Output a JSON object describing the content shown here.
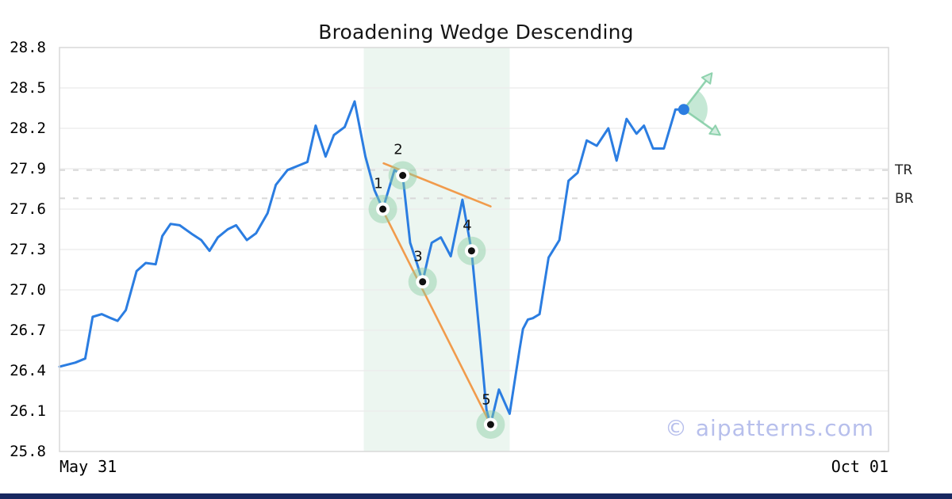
{
  "chart_data": {
    "type": "line",
    "title": "Broadening Wedge Descending",
    "xlabel": "",
    "ylabel": "",
    "x_ticks": [
      "May 31",
      "Oct 01"
    ],
    "y_ticks": [
      "28.8",
      "28.5",
      "28.2",
      "27.9",
      "27.6",
      "27.3",
      "27.0",
      "26.7",
      "26.4",
      "26.1",
      "25.8"
    ],
    "ylim": [
      25.8,
      28.8
    ],
    "grid": "horizontal",
    "legend": "none",
    "watermark": "© aipatterns.com",
    "series": [
      {
        "name": "price",
        "points": [
          [
            0.0,
            26.43
          ],
          [
            0.019,
            26.46
          ],
          [
            0.031,
            26.49
          ],
          [
            0.04,
            26.8
          ],
          [
            0.051,
            26.82
          ],
          [
            0.062,
            26.79
          ],
          [
            0.07,
            26.77
          ],
          [
            0.08,
            26.85
          ],
          [
            0.093,
            27.14
          ],
          [
            0.104,
            27.2
          ],
          [
            0.116,
            27.19
          ],
          [
            0.124,
            27.4
          ],
          [
            0.134,
            27.49
          ],
          [
            0.145,
            27.48
          ],
          [
            0.161,
            27.41
          ],
          [
            0.171,
            27.37
          ],
          [
            0.181,
            27.29
          ],
          [
            0.191,
            27.39
          ],
          [
            0.203,
            27.45
          ],
          [
            0.213,
            27.48
          ],
          [
            0.226,
            27.37
          ],
          [
            0.237,
            27.42
          ],
          [
            0.251,
            27.57
          ],
          [
            0.261,
            27.78
          ],
          [
            0.275,
            27.89
          ],
          [
            0.287,
            27.92
          ],
          [
            0.299,
            27.95
          ],
          [
            0.309,
            28.22
          ],
          [
            0.321,
            27.99
          ],
          [
            0.331,
            28.15
          ],
          [
            0.344,
            28.21
          ],
          [
            0.356,
            28.4
          ],
          [
            0.369,
            27.99
          ],
          [
            0.38,
            27.74
          ],
          [
            0.39,
            27.6
          ],
          [
            0.404,
            27.89
          ],
          [
            0.414,
            27.85
          ],
          [
            0.423,
            27.35
          ],
          [
            0.431,
            27.2
          ],
          [
            0.438,
            27.06
          ],
          [
            0.445,
            27.25
          ],
          [
            0.449,
            27.35
          ],
          [
            0.46,
            27.39
          ],
          [
            0.472,
            27.25
          ],
          [
            0.486,
            27.67
          ],
          [
            0.497,
            27.29
          ],
          [
            0.507,
            26.65
          ],
          [
            0.515,
            26.11
          ],
          [
            0.52,
            26.0
          ],
          [
            0.53,
            26.26
          ],
          [
            0.543,
            26.08
          ],
          [
            0.555,
            26.56
          ],
          [
            0.559,
            26.71
          ],
          [
            0.565,
            26.78
          ],
          [
            0.571,
            26.79
          ],
          [
            0.579,
            26.82
          ],
          [
            0.59,
            27.24
          ],
          [
            0.598,
            27.32
          ],
          [
            0.603,
            27.37
          ],
          [
            0.614,
            27.81
          ],
          [
            0.625,
            27.87
          ],
          [
            0.636,
            28.11
          ],
          [
            0.648,
            28.07
          ],
          [
            0.662,
            28.2
          ],
          [
            0.672,
            27.96
          ],
          [
            0.684,
            28.27
          ],
          [
            0.696,
            28.16
          ],
          [
            0.705,
            28.22
          ],
          [
            0.716,
            28.05
          ],
          [
            0.729,
            28.05
          ],
          [
            0.743,
            28.34
          ],
          [
            0.753,
            28.34
          ]
        ]
      }
    ],
    "points": [
      {
        "label": "1",
        "u": 0.39,
        "v": 27.6
      },
      {
        "label": "2",
        "u": 0.414,
        "v": 27.85
      },
      {
        "label": "3",
        "u": 0.438,
        "v": 27.06
      },
      {
        "label": "4",
        "u": 0.497,
        "v": 27.29
      },
      {
        "label": "5",
        "u": 0.52,
        "v": 26.0
      }
    ],
    "pattern": {
      "shaded_region": {
        "u_start": 0.367,
        "u_end": 0.543
      },
      "trendlines": [
        {
          "name": "top",
          "from": [
            0.391,
            27.94
          ],
          "to": [
            0.52,
            27.62
          ]
        },
        {
          "name": "bottom",
          "from": [
            0.39,
            27.59
          ],
          "to": [
            0.52,
            26.0
          ]
        }
      ]
    },
    "levels": [
      {
        "label": "TR",
        "value": 27.89
      },
      {
        "label": "BR",
        "value": 27.68
      }
    ],
    "breakout": {
      "u": 0.753,
      "v": 28.34,
      "arrows": [
        {
          "u": 0.787,
          "v": 28.61
        },
        {
          "u": 0.797,
          "v": 28.15
        }
      ]
    },
    "colors": {
      "line": "#2b7de1",
      "trendline": "#f19b4c",
      "shade": "rgba(126,197,156,0.15)",
      "marker_halo": "rgba(137,203,161,0.45)",
      "arrow": "#7fcba2",
      "grid": "#ebebeb",
      "border": "#d8d8d8",
      "level_dash": "#d8d8d8",
      "watermark": "#b7bfec",
      "bottom_bar": "#182860"
    }
  }
}
